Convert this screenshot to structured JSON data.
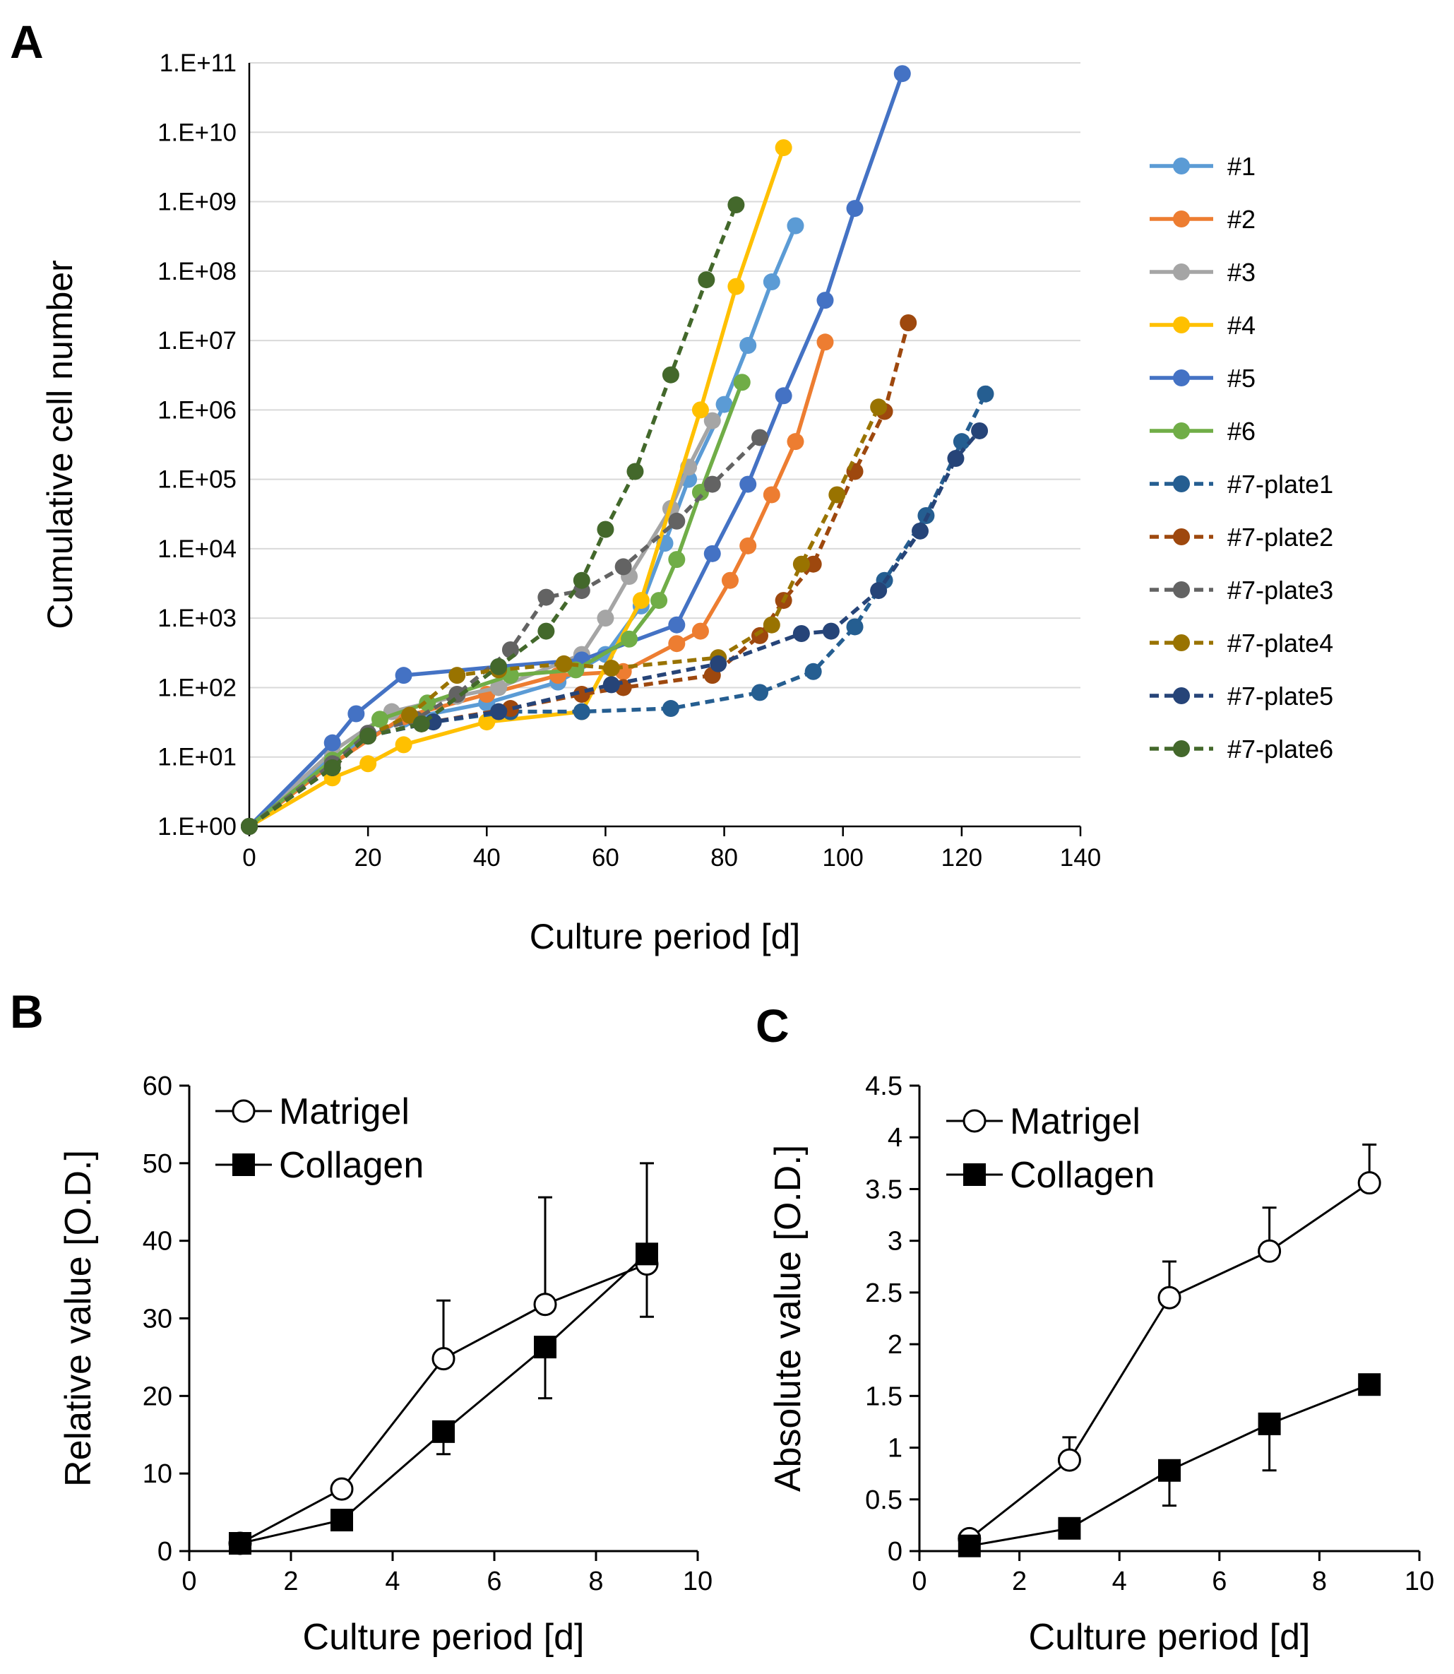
{
  "chart_data": [
    {
      "panel": "A",
      "type": "line",
      "xlabel": "Culture period [d]",
      "ylabel": "Cumulative cell number",
      "xlim": [
        0,
        140
      ],
      "ylim": [
        1,
        100000000000
      ],
      "yscale": "log",
      "x_ticks": [
        "0",
        "20",
        "40",
        "60",
        "80",
        "100",
        "120",
        "140"
      ],
      "y_ticks": [
        "1.E+00",
        "1.E+01",
        "1.E+02",
        "1.E+03",
        "1.E+04",
        "1.E+05",
        "1.E+06",
        "1.E+07",
        "1.E+08",
        "1.E+09",
        "1.E+10",
        "1.E+11"
      ],
      "grid": "horizontal",
      "legend": "right",
      "series": [
        {
          "name": "#1",
          "color": "#5b9bd5",
          "style": "solid",
          "points": [
            [
              0,
              1
            ],
            [
              14,
              10
            ],
            [
              26,
              35
            ],
            [
              40,
              60
            ],
            [
              52,
              120
            ],
            [
              60,
              300
            ],
            [
              66,
              1500
            ],
            [
              70,
              12000
            ],
            [
              74,
              100000
            ],
            [
              80,
              1200000
            ],
            [
              84,
              8500000
            ],
            [
              88,
              70000000
            ],
            [
              92,
              450000000
            ]
          ]
        },
        {
          "name": "#2",
          "color": "#ed7d31",
          "style": "solid",
          "points": [
            [
              0,
              1
            ],
            [
              14,
              8
            ],
            [
              26,
              38
            ],
            [
              40,
              80
            ],
            [
              52,
              150
            ],
            [
              63,
              170
            ],
            [
              72,
              430
            ],
            [
              76,
              650
            ],
            [
              81,
              3500
            ],
            [
              84,
              11000
            ],
            [
              88,
              60000
            ],
            [
              92,
              350000
            ],
            [
              97,
              9500000
            ]
          ]
        },
        {
          "name": "#3",
          "color": "#a5a5a5",
          "style": "solid",
          "points": [
            [
              0,
              1
            ],
            [
              14,
              12
            ],
            [
              24,
              45
            ],
            [
              35,
              75
            ],
            [
              42,
              100
            ],
            [
              56,
              300
            ],
            [
              60,
              1000
            ],
            [
              64,
              4000
            ],
            [
              71,
              38000
            ],
            [
              74,
              150000
            ],
            [
              78,
              700000
            ]
          ]
        },
        {
          "name": "#4",
          "color": "#ffc000",
          "style": "solid",
          "points": [
            [
              0,
              1
            ],
            [
              14,
              5
            ],
            [
              20,
              8
            ],
            [
              26,
              15
            ],
            [
              40,
              32
            ],
            [
              56,
              45
            ],
            [
              66,
              1800
            ],
            [
              76,
              1000000
            ],
            [
              82,
              60000000
            ],
            [
              90,
              6000000000
            ]
          ]
        },
        {
          "name": "#5",
          "color": "#4472c4",
          "style": "solid",
          "points": [
            [
              0,
              1
            ],
            [
              14,
              16
            ],
            [
              18,
              42
            ],
            [
              26,
              150
            ],
            [
              42,
              200
            ],
            [
              56,
              250
            ],
            [
              72,
              800
            ],
            [
              78,
              8500
            ],
            [
              84,
              85000
            ],
            [
              90,
              1600000
            ],
            [
              97,
              38000000
            ],
            [
              102,
              800000000
            ],
            [
              110,
              70000000000
            ]
          ]
        },
        {
          "name": "#6",
          "color": "#70ad47",
          "style": "solid",
          "points": [
            [
              0,
              1
            ],
            [
              14,
              9
            ],
            [
              22,
              35
            ],
            [
              30,
              60
            ],
            [
              44,
              150
            ],
            [
              55,
              180
            ],
            [
              64,
              500
            ],
            [
              69,
              1800
            ],
            [
              72,
              7000
            ],
            [
              76,
              65000
            ],
            [
              83,
              2500000
            ]
          ]
        },
        {
          "name": "#7-plate1",
          "color": "#255e91",
          "style": "dashed",
          "points": [
            [
              0,
              1
            ],
            [
              14,
              7
            ],
            [
              20,
              20
            ],
            [
              31,
              32
            ],
            [
              44,
              45
            ],
            [
              56,
              45
            ],
            [
              71,
              50
            ],
            [
              86,
              85
            ],
            [
              95,
              170
            ],
            [
              102,
              750
            ],
            [
              107,
              3500
            ],
            [
              114,
              30000
            ],
            [
              120,
              350000
            ],
            [
              124,
              1700000
            ]
          ]
        },
        {
          "name": "#7-plate2",
          "color": "#9e480e",
          "style": "dashed",
          "points": [
            [
              0,
              1
            ],
            [
              14,
              7
            ],
            [
              20,
              20
            ],
            [
              29,
              30
            ],
            [
              44,
              50
            ],
            [
              56,
              80
            ],
            [
              63,
              100
            ],
            [
              78,
              150
            ],
            [
              86,
              560
            ],
            [
              90,
              1800
            ],
            [
              95,
              6000
            ],
            [
              102,
              130000
            ],
            [
              107,
              950000
            ],
            [
              111,
              18000000
            ]
          ]
        },
        {
          "name": "#7-plate3",
          "color": "#636363",
          "style": "dashed",
          "points": [
            [
              0,
              1
            ],
            [
              14,
              8
            ],
            [
              20,
              22
            ],
            [
              28,
              35
            ],
            [
              35,
              80
            ],
            [
              44,
              350
            ],
            [
              50,
              2000
            ],
            [
              56,
              2500
            ],
            [
              63,
              5500
            ],
            [
              72,
              25000
            ],
            [
              78,
              85000
            ],
            [
              86,
              400000
            ]
          ]
        },
        {
          "name": "#7-plate4",
          "color": "#997300",
          "style": "dashed",
          "points": [
            [
              0,
              1
            ],
            [
              14,
              7
            ],
            [
              20,
              20
            ],
            [
              27,
              40
            ],
            [
              35,
              150
            ],
            [
              42,
              180
            ],
            [
              53,
              220
            ],
            [
              61,
              190
            ],
            [
              79,
              270
            ],
            [
              88,
              800
            ],
            [
              93,
              6000
            ],
            [
              99,
              60000
            ],
            [
              106,
              1100000
            ]
          ]
        },
        {
          "name": "#7-plate5",
          "color": "#264478",
          "style": "dashed",
          "points": [
            [
              0,
              1
            ],
            [
              14,
              7
            ],
            [
              20,
              20
            ],
            [
              31,
              32
            ],
            [
              42,
              45
            ],
            [
              61,
              110
            ],
            [
              79,
              220
            ],
            [
              93,
              600
            ],
            [
              98,
              650
            ],
            [
              106,
              2500
            ],
            [
              113,
              18000
            ],
            [
              119,
              200000
            ],
            [
              123,
              500000
            ]
          ]
        },
        {
          "name": "#7-plate6",
          "color": "#43682b",
          "style": "dashed",
          "points": [
            [
              0,
              1
            ],
            [
              14,
              7
            ],
            [
              20,
              20
            ],
            [
              29,
              30
            ],
            [
              42,
              200
            ],
            [
              50,
              650
            ],
            [
              56,
              3500
            ],
            [
              60,
              19000
            ],
            [
              65,
              130000
            ],
            [
              71,
              3200000
            ],
            [
              77,
              75000000
            ],
            [
              82,
              900000000
            ]
          ]
        }
      ]
    },
    {
      "panel": "B",
      "type": "line",
      "xlabel": "Culture period [d]",
      "ylabel": "Relative value [O.D.]",
      "xlim": [
        0,
        10
      ],
      "ylim": [
        0,
        60
      ],
      "x_ticks": [
        "0",
        "2",
        "4",
        "6",
        "8",
        "10"
      ],
      "y_ticks": [
        "0",
        "10",
        "20",
        "30",
        "40",
        "50",
        "60"
      ],
      "legend": "top-left",
      "series": [
        {
          "name": "Matrigel",
          "marker": "open-circle",
          "x": [
            1,
            3,
            5,
            7,
            9
          ],
          "values": [
            1,
            8,
            24.8,
            31.8,
            37
          ],
          "error_plus": [
            0,
            0,
            7.5,
            13.8,
            0
          ],
          "error_minus": [
            0,
            0,
            0,
            0,
            6.8
          ]
        },
        {
          "name": "Collagen",
          "marker": "filled-square",
          "x": [
            1,
            3,
            5,
            7,
            9
          ],
          "values": [
            1,
            4,
            15.4,
            26.3,
            38.3
          ],
          "error_plus": [
            0,
            0,
            0,
            0,
            11.7
          ],
          "error_minus": [
            0,
            0,
            2.9,
            6.6,
            0
          ]
        }
      ]
    },
    {
      "panel": "C",
      "type": "line",
      "xlabel": "Culture period [d]",
      "ylabel": "Absolute value [O.D.]",
      "xlim": [
        0,
        10
      ],
      "ylim": [
        0,
        4.5
      ],
      "x_ticks": [
        "0",
        "2",
        "4",
        "6",
        "8",
        "10"
      ],
      "y_ticks": [
        "0",
        "0.5",
        "1",
        "1.5",
        "2",
        "2.5",
        "3",
        "3.5",
        "4",
        "4.5"
      ],
      "legend": "top-left",
      "series": [
        {
          "name": "Matrigel",
          "marker": "open-circle",
          "x": [
            1,
            3,
            5,
            7,
            9
          ],
          "values": [
            0.12,
            0.88,
            2.45,
            2.9,
            3.56
          ],
          "error_plus": [
            0,
            0.22,
            0.35,
            0.42,
            0.37
          ],
          "error_minus": [
            0,
            0,
            0,
            0,
            0
          ]
        },
        {
          "name": "Collagen",
          "marker": "filled-square",
          "x": [
            1,
            3,
            5,
            7,
            9
          ],
          "values": [
            0.05,
            0.22,
            0.78,
            1.23,
            1.61
          ],
          "error_plus": [
            0,
            0,
            0,
            0,
            0
          ],
          "error_minus": [
            0,
            0,
            0.34,
            0.45,
            0
          ]
        }
      ]
    }
  ]
}
